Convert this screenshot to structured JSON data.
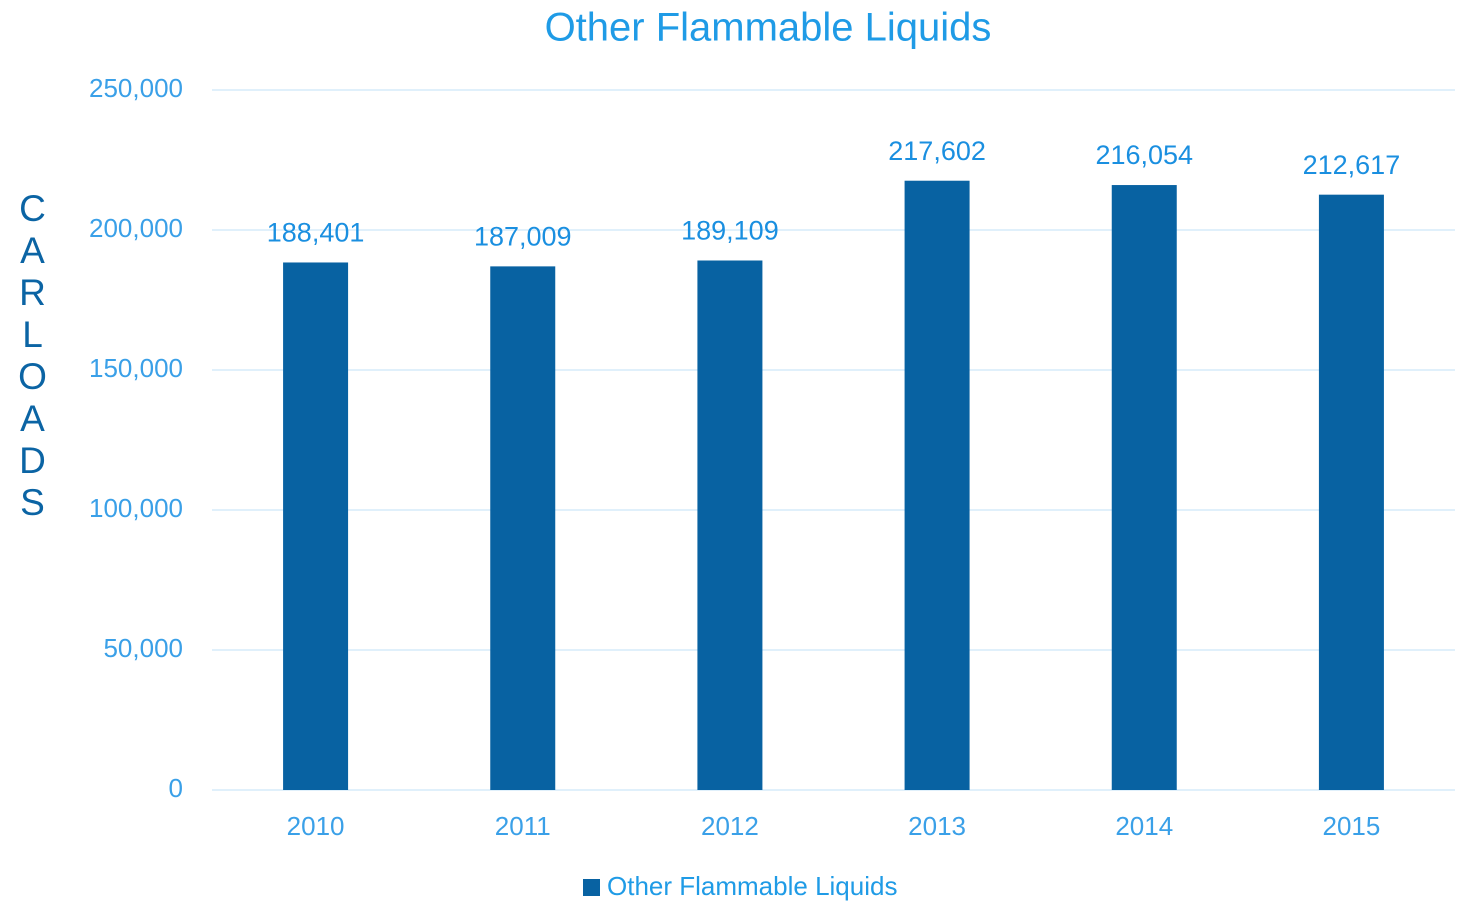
{
  "chart_data": {
    "type": "bar",
    "title": "Other Flammable Liquids",
    "y_axis_label": "CARLOADS",
    "categories": [
      "2010",
      "2011",
      "2012",
      "2013",
      "2014",
      "2015"
    ],
    "series": [
      {
        "name": "Other Flammable Liquids",
        "color": "#0862a2",
        "values": [
          188401,
          187009,
          189109,
          217602,
          216054,
          212617
        ],
        "value_labels": [
          "188,401",
          "187,009",
          "189,109",
          "217,602",
          "216,054",
          "212,617"
        ]
      }
    ],
    "ylim": [
      0,
      250000
    ],
    "yticks": [
      0,
      {
        "value": 50000,
        "label": "50,000"
      },
      {
        "value": 100000,
        "label": "100,000"
      },
      {
        "value": 150000,
        "label": "150,000"
      },
      {
        "value": 200000,
        "label": "200,000"
      },
      {
        "value": 250000,
        "label": "250,000"
      }
    ],
    "grid": true,
    "legend": "bottom"
  }
}
